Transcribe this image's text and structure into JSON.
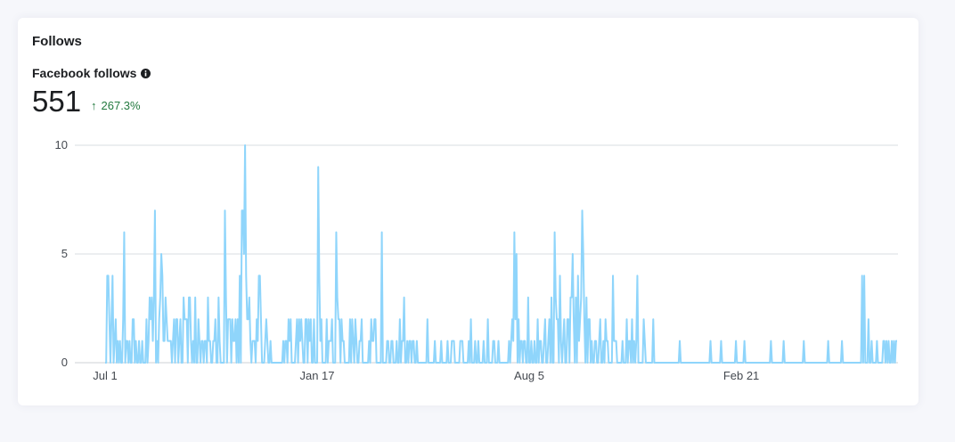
{
  "card": {
    "title": "Follows",
    "metric_label": "Facebook follows",
    "metric_value": "551",
    "delta": "267.3%"
  },
  "icons": {
    "info": "info-icon",
    "arrow": "arrow-up-icon"
  },
  "colors": {
    "line": "#8fd5fb",
    "delta": "#237a3f",
    "grid": "#dadde1"
  },
  "chart_data": {
    "type": "line",
    "title": "",
    "xlabel": "",
    "ylabel": "",
    "ylim": [
      0,
      10
    ],
    "yticks": [
      0,
      5,
      10
    ],
    "xtick_labels": [
      {
        "label": "Jul 1",
        "index": 0
      },
      {
        "label": "Jan 17",
        "index": 200
      },
      {
        "label": "Aug 5",
        "index": 400
      },
      {
        "label": "Feb 21",
        "index": 600
      }
    ],
    "grid": true,
    "series": [
      {
        "values": [
          0,
          0,
          4,
          4,
          2,
          0,
          2,
          4,
          0,
          1,
          2,
          0,
          1,
          0,
          1,
          0,
          0,
          2,
          6,
          0,
          1,
          1,
          0,
          1,
          0,
          0,
          2,
          2,
          0,
          1,
          0,
          0,
          1,
          0,
          0,
          1,
          0,
          0,
          0,
          2,
          0,
          1,
          3,
          2,
          3,
          1,
          3,
          7,
          0,
          1,
          0,
          2,
          3,
          5,
          4,
          1,
          1,
          3,
          2,
          1,
          1,
          1,
          1,
          0,
          1,
          2,
          0,
          2,
          2,
          0,
          1,
          2,
          0,
          0,
          3,
          2,
          2,
          2,
          0,
          3,
          3,
          1,
          0,
          1,
          0,
          3,
          0,
          0,
          2,
          1,
          0,
          1,
          1,
          0,
          1,
          1,
          0,
          3,
          1,
          1,
          0,
          0,
          1,
          1,
          2,
          0,
          0,
          3,
          1,
          0,
          0,
          0,
          0,
          7,
          3,
          0,
          2,
          2,
          2,
          0,
          2,
          1,
          1,
          2,
          0,
          2,
          0,
          4,
          0,
          7,
          7,
          5,
          10,
          4,
          2,
          2,
          3,
          1,
          0,
          1,
          1,
          1,
          0,
          2,
          1,
          4,
          4,
          2,
          0,
          0,
          0,
          1,
          2,
          1,
          0,
          0,
          1,
          0,
          0,
          0,
          0,
          0,
          0,
          0,
          0,
          0,
          0,
          0,
          1,
          0,
          1,
          1,
          0,
          2,
          1,
          2,
          0,
          0,
          0,
          0,
          1,
          2,
          0,
          2,
          1,
          2,
          1,
          0,
          0,
          2,
          2,
          0,
          2,
          1,
          2,
          0,
          0,
          2,
          0,
          0,
          0,
          9,
          4,
          1,
          2,
          0,
          0,
          0,
          0,
          2,
          0,
          1,
          1,
          1,
          2,
          0,
          0,
          0,
          6,
          3,
          2,
          2,
          0,
          2,
          1,
          1,
          0,
          0,
          0,
          0,
          0,
          2,
          0,
          2,
          1,
          0,
          2,
          1,
          0,
          0,
          1,
          1,
          2,
          0,
          0,
          0,
          0,
          0,
          0,
          1,
          0,
          2,
          1,
          1,
          2,
          2,
          0,
          0,
          0,
          0,
          0,
          6,
          0,
          0,
          0,
          0,
          1,
          1,
          0,
          0,
          1,
          1,
          0,
          0,
          0,
          1,
          0,
          0,
          2,
          0,
          1,
          1,
          3,
          0,
          0,
          1,
          0,
          1,
          1,
          0,
          1,
          1,
          0,
          0,
          1,
          0,
          0,
          0,
          0,
          0,
          0,
          0,
          0,
          0,
          2,
          0,
          0,
          0,
          0,
          0,
          0,
          1,
          0,
          0,
          0,
          0,
          0,
          1,
          0,
          0,
          0,
          0,
          0,
          1,
          0,
          0,
          0,
          1,
          1,
          1,
          0,
          0,
          0,
          0,
          0,
          1,
          1,
          1,
          0,
          0,
          0,
          0,
          0,
          1,
          0,
          2,
          0,
          0,
          0,
          1,
          0,
          0,
          1,
          0,
          0,
          0,
          0,
          1,
          0,
          0,
          0,
          2,
          0,
          0,
          0,
          0,
          1,
          1,
          0,
          0,
          0,
          1,
          0,
          0,
          0,
          0,
          0,
          0,
          0,
          0,
          0,
          1,
          0,
          1,
          2,
          1,
          6,
          2,
          5,
          0,
          2,
          0,
          1,
          1,
          0,
          1,
          1,
          0,
          0,
          3,
          0,
          0,
          1,
          0,
          0,
          1,
          0,
          0,
          2,
          0,
          1,
          1,
          0,
          0,
          1,
          2,
          0,
          0,
          1,
          2,
          0,
          3,
          0,
          0,
          6,
          3,
          2,
          2,
          0,
          4,
          1,
          0,
          1,
          2,
          0,
          0,
          2,
          2,
          0,
          3,
          3,
          5,
          2,
          0,
          3,
          0,
          4,
          1,
          2,
          3,
          7,
          5,
          2,
          0,
          3,
          0,
          2,
          2,
          0,
          1,
          0,
          0,
          1,
          1,
          0,
          0,
          1,
          2,
          0,
          0,
          1,
          0,
          2,
          1,
          1,
          0,
          0,
          0,
          0,
          4,
          1,
          1,
          1,
          0,
          0,
          0,
          0,
          0,
          1,
          0,
          0,
          0,
          2,
          0,
          1,
          1,
          0,
          2,
          0,
          1,
          0,
          1,
          4,
          0,
          0,
          0,
          0,
          0,
          2,
          1,
          0,
          0,
          0,
          0,
          0,
          0,
          0,
          2,
          0,
          0,
          0,
          0,
          0,
          0,
          0,
          0,
          0,
          0,
          0,
          0,
          0,
          0,
          0,
          0,
          0,
          0,
          0,
          0,
          0,
          0,
          0,
          0,
          1,
          0,
          0,
          0,
          0,
          0,
          0,
          0,
          0,
          0,
          0,
          0,
          0,
          0,
          0,
          0,
          0,
          0,
          0,
          0,
          0,
          0,
          0,
          0,
          0,
          0,
          0,
          0,
          0,
          1,
          0,
          0,
          0,
          0,
          0,
          0,
          0,
          0,
          0,
          1,
          0,
          0,
          0,
          0,
          0,
          0,
          0,
          0,
          0,
          0,
          0,
          0,
          0,
          1,
          0,
          0,
          0,
          0,
          0,
          0,
          0,
          1,
          0,
          0,
          0,
          0,
          0,
          0,
          0,
          0,
          0,
          0,
          0,
          0,
          0,
          0,
          0,
          0,
          0,
          0,
          0,
          0,
          0,
          0,
          0,
          0,
          1,
          0,
          0,
          0,
          0,
          0,
          0,
          0,
          0,
          0,
          0,
          0,
          1,
          0,
          0,
          0,
          0,
          0,
          0,
          0,
          0,
          0,
          0,
          0,
          0,
          0,
          0,
          0,
          0,
          0,
          0,
          1,
          0,
          0,
          0,
          0,
          0,
          0,
          0,
          0,
          0,
          0,
          0,
          0,
          0,
          0,
          0,
          0,
          0,
          0,
          0,
          0,
          0,
          0,
          1,
          0,
          0,
          0,
          0,
          0,
          0,
          0,
          0,
          0,
          0,
          0,
          0,
          1,
          0,
          0,
          0,
          0,
          0,
          0,
          0,
          0,
          0,
          0,
          0,
          0,
          0,
          0,
          0,
          0,
          0,
          0,
          4,
          0,
          4,
          0,
          0,
          0,
          2,
          0,
          0,
          1,
          0,
          0,
          0,
          0,
          1,
          0,
          0,
          0,
          0,
          0,
          1,
          1,
          0,
          1,
          0,
          1,
          0,
          0,
          1,
          0,
          1,
          0,
          1,
          1
        ]
      }
    ]
  }
}
